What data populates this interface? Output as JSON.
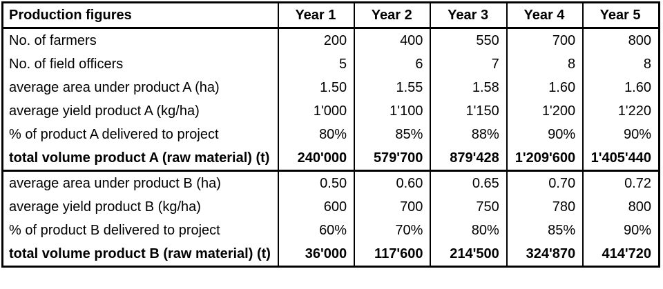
{
  "chart_data": {
    "type": "table",
    "title": "Production figures",
    "columns": [
      "Production figures",
      "Year 1",
      "Year 2",
      "Year 3",
      "Year 4",
      "Year 5"
    ],
    "rows": [
      {
        "label": "No. of farmers",
        "values": [
          "200",
          "400",
          "550",
          "700",
          "800"
        ]
      },
      {
        "label": "No. of field officers",
        "values": [
          "5",
          "6",
          "7",
          "8",
          "8"
        ]
      },
      {
        "label": "average area under product A (ha)",
        "values": [
          "1.50",
          "1.55",
          "1.58",
          "1.60",
          "1.60"
        ]
      },
      {
        "label": "average yield product A (kg/ha)",
        "values": [
          "1'000",
          "1'100",
          "1'150",
          "1'200",
          "1'220"
        ]
      },
      {
        "label": "% of product A delivered to project",
        "values": [
          "80%",
          "85%",
          "88%",
          "90%",
          "90%"
        ]
      },
      {
        "label": "total volume product A (raw material) (t)",
        "values": [
          "240'000",
          "579'700",
          "879'428",
          "1'209'600",
          "1'405'440"
        ]
      },
      {
        "label": "average area under product B (ha)",
        "values": [
          "0.50",
          "0.60",
          "0.65",
          "0.70",
          "0.72"
        ]
      },
      {
        "label": "average yield product B (kg/ha)",
        "values": [
          "600",
          "700",
          "750",
          "780",
          "800"
        ]
      },
      {
        "label": "% of product B delivered to project",
        "values": [
          "60%",
          "70%",
          "80%",
          "85%",
          "90%"
        ]
      },
      {
        "label": "total volume product B (raw material) (t)",
        "values": [
          "36'000",
          "117'600",
          "214'500",
          "324'870",
          "414'720"
        ]
      }
    ],
    "number_format": "thousands separated by apostrophe",
    "layout": "first column left-aligned labels, year columns right-aligned values, total rows bold"
  },
  "colors": {
    "border": "#000000",
    "background": "#ffffff",
    "text": "#000000"
  }
}
